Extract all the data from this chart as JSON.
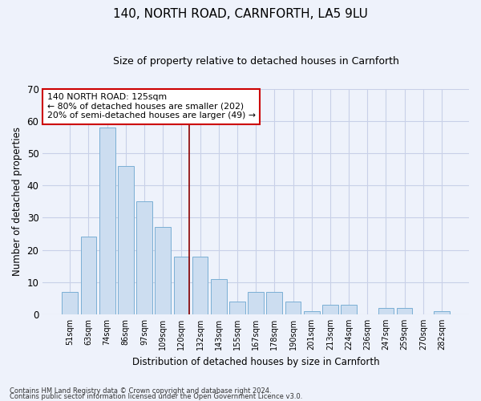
{
  "title1": "140, NORTH ROAD, CARNFORTH, LA5 9LU",
  "title2": "Size of property relative to detached houses in Carnforth",
  "xlabel": "Distribution of detached houses by size in Carnforth",
  "ylabel": "Number of detached properties",
  "categories": [
    "51sqm",
    "63sqm",
    "74sqm",
    "86sqm",
    "97sqm",
    "109sqm",
    "120sqm",
    "132sqm",
    "143sqm",
    "155sqm",
    "167sqm",
    "178sqm",
    "190sqm",
    "201sqm",
    "213sqm",
    "224sqm",
    "236sqm",
    "247sqm",
    "259sqm",
    "270sqm",
    "282sqm"
  ],
  "values": [
    7,
    24,
    58,
    46,
    35,
    27,
    18,
    18,
    11,
    4,
    7,
    7,
    4,
    1,
    3,
    3,
    0,
    2,
    2,
    0,
    1
  ],
  "bar_color": "#ccddf0",
  "bar_edge_color": "#7aafd4",
  "ylim": [
    0,
    70
  ],
  "yticks": [
    0,
    10,
    20,
    30,
    40,
    50,
    60,
    70
  ],
  "annotation_line1": "140 NORTH ROAD: 125sqm",
  "annotation_line2": "← 80% of detached houses are smaller (202)",
  "annotation_line3": "20% of semi-detached houses are larger (49) →",
  "vline_x_index": 6.42,
  "vline_color": "#8b0000",
  "annotation_box_color": "#cc0000",
  "background_color": "#eef2fb",
  "grid_color": "#c8d0e8",
  "footer_line1": "Contains HM Land Registry data © Crown copyright and database right 2024.",
  "footer_line2": "Contains public sector information licensed under the Open Government Licence v3.0."
}
